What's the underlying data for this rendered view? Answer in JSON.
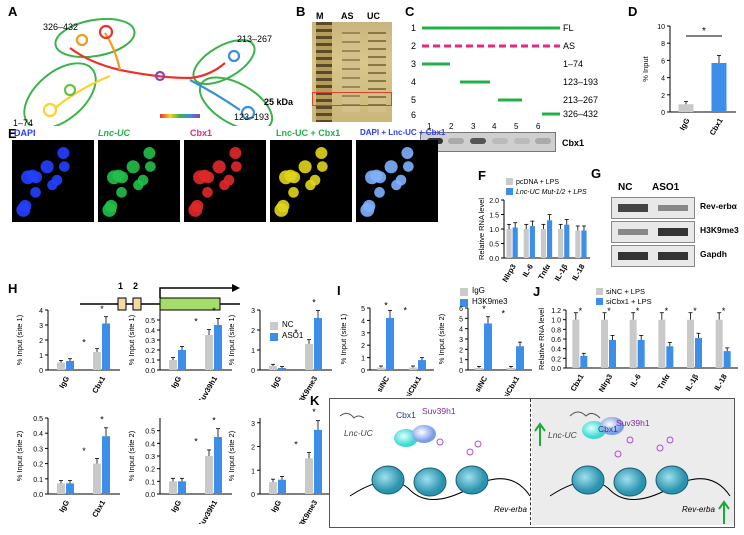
{
  "panels": {
    "A": {
      "letter": "A",
      "labels": [
        "326–432",
        "213–267",
        "1–74",
        "123–193"
      ]
    },
    "B": {
      "letter": "B",
      "lanes": [
        "M",
        "AS",
        "UC"
      ],
      "marker": "25 kDa"
    },
    "C": {
      "letter": "C",
      "rows": [
        {
          "num": "1",
          "label": "FL"
        },
        {
          "num": "2",
          "label": "AS"
        },
        {
          "num": "3",
          "label": "1–74"
        },
        {
          "num": "4",
          "label": "123–193"
        },
        {
          "num": "5",
          "label": "213–267"
        },
        {
          "num": "6",
          "label": "326–432"
        }
      ],
      "lanes": [
        "1",
        "2",
        "3",
        "4",
        "5",
        "6"
      ],
      "blot": "Cbx1"
    },
    "D": {
      "letter": "D",
      "ylabel": "% Input",
      "categories": [
        "IgG",
        "Cbx1"
      ],
      "values": [
        0.9,
        5.7
      ],
      "yticks": [
        "0",
        "2",
        "4",
        "6",
        "8",
        "10"
      ],
      "sig": "*"
    },
    "E": {
      "letter": "E",
      "titles": [
        "DAPI",
        "Lnc-UC",
        "Cbx1",
        "Lnc-UC + Cbx1",
        "DAPI + Lnc-UC + Cbx1"
      ]
    },
    "F": {
      "letter": "F",
      "ylabel": "Relative RNA level",
      "legend": [
        "pcDNA + LPS",
        "Lnc-UC Mut-1/2 + LPS"
      ],
      "categories": [
        "Nlrp3",
        "IL-6",
        "Tnfα",
        "IL-1β",
        "IL-18"
      ],
      "yticks": [
        "0.0",
        "0.5",
        "1.0",
        "1.5",
        "2.0"
      ]
    },
    "G": {
      "letter": "G",
      "cols": [
        "NC",
        "ASO1"
      ],
      "rows": [
        "Rev-erbα",
        "H3K9me3",
        "Gapdh"
      ]
    },
    "H": {
      "letter": "H",
      "legend": [
        "NC",
        "ASO1"
      ],
      "gene": {
        "sites": [
          "1",
          "2"
        ]
      },
      "ylabel_site1": "% Input (site 1)",
      "ylabel_site2": "% Input (site 2)",
      "groups": [
        "Cbx1",
        "Suv39h1",
        "H3K9me3"
      ]
    },
    "I": {
      "letter": "I",
      "legend": [
        "IgG",
        "H3K9me3"
      ],
      "ylabel1": "% Input (site 1)",
      "ylabel2": "% Input (site 2)",
      "x": [
        "siNC",
        "siCbx1"
      ]
    },
    "J": {
      "letter": "J",
      "legend": [
        "siNC + LPS",
        "siCbx1 + LPS"
      ],
      "ylabel": "Relative RNA level",
      "categories": [
        "Cbx1",
        "Nlrp3",
        "IL-6",
        "Tnfα",
        "IL-1β",
        "IL-18"
      ],
      "yticks": [
        "0.0",
        "0.2",
        "0.4",
        "0.6",
        "0.8",
        "1.0",
        "1.2"
      ]
    },
    "K": {
      "letter": "K",
      "left": {
        "lnc": "Lnc-UC",
        "cbx": "Cbx1",
        "suv": "Suv39h1",
        "gene": "Rev-erba"
      },
      "right": {
        "lnc": "Lnc-UC",
        "cbx": "Cbx1",
        "suv": "Suv39h1",
        "gene": "Rev-erba"
      }
    }
  },
  "chart_data": [
    {
      "type": "bar",
      "categories": [
        "IgG",
        "Cbx1"
      ],
      "values": [
        0.9,
        5.7
      ],
      "ylabel": "% Input",
      "ylim": [
        0,
        10
      ]
    },
    {
      "type": "bar",
      "categories": [
        "Nlrp3",
        "IL-6",
        "Tnfα",
        "IL-1β",
        "IL-18"
      ],
      "series": [
        {
          "name": "pcDNA + LPS",
          "values": [
            1.0,
            1.0,
            1.0,
            1.0,
            0.95
          ]
        },
        {
          "name": "Lnc-UC Mut-1/2 + LPS",
          "values": [
            1.05,
            1.1,
            1.3,
            1.15,
            0.95
          ]
        }
      ],
      "ylabel": "Relative RNA level",
      "ylim": [
        0,
        2
      ]
    },
    {
      "type": "bar",
      "categories": [
        "siNC",
        "siCbx1"
      ],
      "series": [
        {
          "name": "IgG",
          "values": [
            0.2,
            0.2
          ]
        },
        {
          "name": "H3K9me3",
          "values": [
            4.2,
            0.8
          ]
        }
      ],
      "ylabel": "% Input (site 1)"
    },
    {
      "type": "bar",
      "categories": [
        "siNC",
        "siCbx1"
      ],
      "series": [
        {
          "name": "IgG",
          "values": [
            0.2,
            0.2
          ]
        },
        {
          "name": "H3K9me3",
          "values": [
            4.5,
            2.3
          ]
        }
      ],
      "ylabel": "% Input (site 2)"
    },
    {
      "type": "bar",
      "categories": [
        "Cbx1",
        "Nlrp3",
        "IL-6",
        "Tnfα",
        "IL-1β",
        "IL-18"
      ],
      "series": [
        {
          "name": "siNC + LPS",
          "values": [
            1.0,
            1.0,
            1.0,
            1.0,
            1.0,
            1.0
          ]
        },
        {
          "name": "siCbx1 + LPS",
          "values": [
            0.25,
            0.58,
            0.58,
            0.45,
            0.62,
            0.35
          ]
        }
      ],
      "ylabel": "Relative RNA level",
      "ylim": [
        0,
        1.2
      ]
    },
    {
      "type": "bar",
      "categories": [
        "IgG",
        "Cbx1"
      ],
      "series": [
        {
          "name": "NC",
          "values": [
            0.5,
            1.2
          ]
        },
        {
          "name": "ASO1",
          "values": [
            0.6,
            3.1
          ]
        }
      ],
      "ylabel": "% Input (site 1)"
    },
    {
      "type": "bar",
      "categories": [
        "IgG",
        "Suv39h1"
      ],
      "series": [
        {
          "name": "NC",
          "values": [
            0.1,
            0.35
          ]
        },
        {
          "name": "ASO1",
          "values": [
            0.2,
            0.45
          ]
        }
      ],
      "ylabel": "% Input (site 1)"
    },
    {
      "type": "bar",
      "categories": [
        "IgG",
        "H3K9me3"
      ],
      "series": [
        {
          "name": "NC",
          "values": [
            0.2,
            1.3
          ]
        },
        {
          "name": "ASO1",
          "values": [
            0.1,
            2.6
          ]
        }
      ],
      "ylabel": "% Input (site 1)"
    },
    {
      "type": "bar",
      "categories": [
        "IgG",
        "Cbx1"
      ],
      "series": [
        {
          "name": "NC",
          "values": [
            0.07,
            0.2
          ]
        },
        {
          "name": "ASO1",
          "values": [
            0.07,
            0.38
          ]
        }
      ],
      "ylabel": "% Input (site 2)"
    },
    {
      "type": "bar",
      "categories": [
        "IgG",
        "Suv39h1"
      ],
      "series": [
        {
          "name": "NC",
          "values": [
            0.1,
            0.3
          ]
        },
        {
          "name": "ASO1",
          "values": [
            0.1,
            0.45
          ]
        }
      ],
      "ylabel": "% Input (site 2)"
    },
    {
      "type": "bar",
      "categories": [
        "IgG",
        "H3K9me3"
      ],
      "series": [
        {
          "name": "NC",
          "values": [
            0.5,
            1.5
          ]
        },
        {
          "name": "ASO1",
          "values": [
            0.6,
            2.7
          ]
        }
      ],
      "ylabel": "% Input (site 2)"
    }
  ]
}
